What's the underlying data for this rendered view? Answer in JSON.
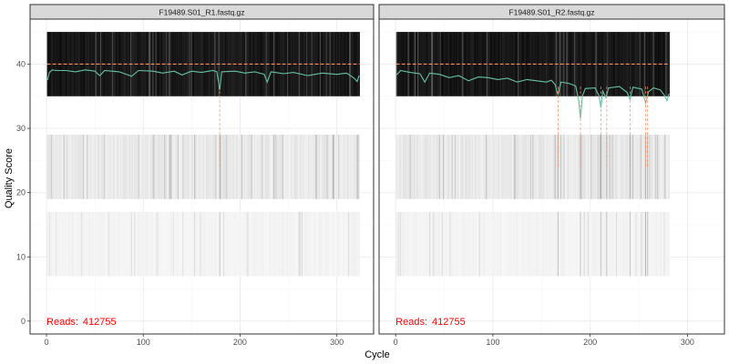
{
  "chart_data": {
    "type": "heatmap",
    "xlabel": "Cycle",
    "ylabel": "Quality Score",
    "xlim": [
      -17,
      338
    ],
    "ylim": [
      -2,
      47
    ],
    "x_ticks": [
      0,
      100,
      200,
      300
    ],
    "y_ticks": [
      0,
      10,
      20,
      30,
      40
    ],
    "reference_quality": 40,
    "colors": {
      "mean_line": "#66c2a5",
      "reference_line": "#fc8d62",
      "dropout_line": "#fc8d62",
      "reads_text": "#ff0000",
      "strip_fill": "#d9d9d9",
      "panel_border": "#333333",
      "grid": "#ebebeb"
    },
    "panels": [
      {
        "title": "F19489.S01_R1.fastq.gz",
        "reads_label": "Reads:",
        "reads_value": "412755",
        "cycles": 323,
        "score_bands": [
          {
            "from": 35,
            "to": 45,
            "shade": "dark"
          },
          {
            "from": 19,
            "to": 29,
            "shade": "medium"
          },
          {
            "from": 7,
            "to": 17,
            "shade": "light"
          }
        ],
        "mean_quality": [
          [
            1,
            37.5
          ],
          [
            3,
            38.7
          ],
          [
            6,
            39.1
          ],
          [
            10,
            39.0
          ],
          [
            20,
            39.0
          ],
          [
            30,
            38.8
          ],
          [
            40,
            39.1
          ],
          [
            50,
            38.9
          ],
          [
            55,
            38.2
          ],
          [
            60,
            39.0
          ],
          [
            75,
            38.8
          ],
          [
            88,
            38.1
          ],
          [
            95,
            39.0
          ],
          [
            110,
            38.9
          ],
          [
            120,
            38.6
          ],
          [
            132,
            38.9
          ],
          [
            140,
            38.3
          ],
          [
            150,
            38.9
          ],
          [
            160,
            38.7
          ],
          [
            172,
            39.0
          ],
          [
            176,
            38.8
          ],
          [
            179,
            36.0
          ],
          [
            181,
            38.8
          ],
          [
            195,
            38.9
          ],
          [
            205,
            38.6
          ],
          [
            215,
            38.8
          ],
          [
            225,
            38.4
          ],
          [
            228,
            37.2
          ],
          [
            232,
            38.8
          ],
          [
            245,
            38.5
          ],
          [
            255,
            38.7
          ],
          [
            270,
            38.2
          ],
          [
            285,
            38.6
          ],
          [
            300,
            38.4
          ],
          [
            310,
            38.6
          ],
          [
            318,
            37.8
          ],
          [
            321,
            37.3
          ],
          [
            323,
            38.2
          ]
        ],
        "dropout_cycles": [
          179
        ]
      },
      {
        "title": "F19489.S01_R2.fastq.gz",
        "reads_label": "Reads:",
        "reads_value": "412755",
        "cycles": 281,
        "score_bands": [
          {
            "from": 35,
            "to": 45,
            "shade": "dark"
          },
          {
            "from": 19,
            "to": 29,
            "shade": "medium"
          },
          {
            "from": 7,
            "to": 17,
            "shade": "light"
          }
        ],
        "mean_quality": [
          [
            1,
            38.3
          ],
          [
            5,
            39.0
          ],
          [
            15,
            38.7
          ],
          [
            25,
            38.5
          ],
          [
            30,
            37.2
          ],
          [
            35,
            38.6
          ],
          [
            45,
            38.4
          ],
          [
            55,
            37.9
          ],
          [
            65,
            38.2
          ],
          [
            75,
            37.4
          ],
          [
            85,
            38.0
          ],
          [
            95,
            37.9
          ],
          [
            105,
            37.6
          ],
          [
            115,
            37.8
          ],
          [
            125,
            37.2
          ],
          [
            135,
            37.6
          ],
          [
            145,
            37.4
          ],
          [
            155,
            37.2
          ],
          [
            160,
            37.5
          ],
          [
            164,
            36.8
          ],
          [
            167,
            35.2
          ],
          [
            170,
            37.2
          ],
          [
            178,
            37.0
          ],
          [
            185,
            36.6
          ],
          [
            188,
            34.5
          ],
          [
            190,
            31.5
          ],
          [
            192,
            35.0
          ],
          [
            195,
            36.2
          ],
          [
            205,
            36.3
          ],
          [
            209,
            35.1
          ],
          [
            211,
            33.2
          ],
          [
            213,
            35.8
          ],
          [
            216,
            34.8
          ],
          [
            219,
            36.3
          ],
          [
            230,
            36.5
          ],
          [
            238,
            35.6
          ],
          [
            241,
            34.5
          ],
          [
            244,
            36.4
          ],
          [
            253,
            36.1
          ],
          [
            257,
            33.9
          ],
          [
            260,
            35.7
          ],
          [
            265,
            36.3
          ],
          [
            272,
            36.0
          ],
          [
            276,
            35.2
          ],
          [
            279,
            34.3
          ],
          [
            281,
            35.4
          ]
        ],
        "dropout_cycles": [
          167,
          190,
          211,
          217,
          241,
          257,
          259
        ]
      }
    ]
  }
}
